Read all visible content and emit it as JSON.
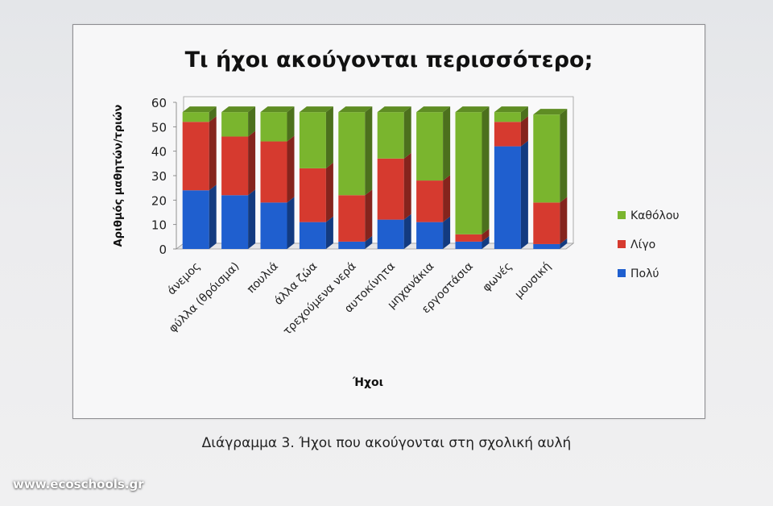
{
  "chart_data": {
    "type": "bar",
    "stacked": true,
    "three_d": true,
    "title": "Τι ήχοι ακούγονται περισσότερο;",
    "xlabel": "Ήχοι",
    "ylabel": "Αριθμός μαθητών/τριών",
    "ylim": [
      0,
      60
    ],
    "yticks": [
      0,
      10,
      20,
      30,
      40,
      50,
      60
    ],
    "grid": false,
    "legend_position": "right",
    "categories": [
      "άνεμος",
      "φύλλα (θρόισμα)",
      "πουλιά",
      "άλλα ζώα",
      "τρεχούμενα νερά",
      "αυτοκίνητα",
      "μηχανάκια",
      "εργοστάσια",
      "φωνές",
      "μουσική"
    ],
    "series": [
      {
        "name": "Πολύ",
        "color": "#1f5fcf",
        "values": [
          24,
          22,
          19,
          11,
          3,
          12,
          11,
          3,
          42,
          2
        ]
      },
      {
        "name": "Λίγο",
        "color": "#d63a2f",
        "values": [
          28,
          24,
          25,
          22,
          19,
          25,
          17,
          3,
          10,
          17
        ]
      },
      {
        "name": "Καθόλου",
        "color": "#7ab52e",
        "values": [
          4,
          10,
          12,
          23,
          34,
          19,
          28,
          50,
          4,
          36
        ]
      }
    ]
  },
  "caption": "Διάγραμμα 3. Ήχοι που ακούγονται στη σχολική αυλή",
  "watermark": "www.ecoschools.gr"
}
